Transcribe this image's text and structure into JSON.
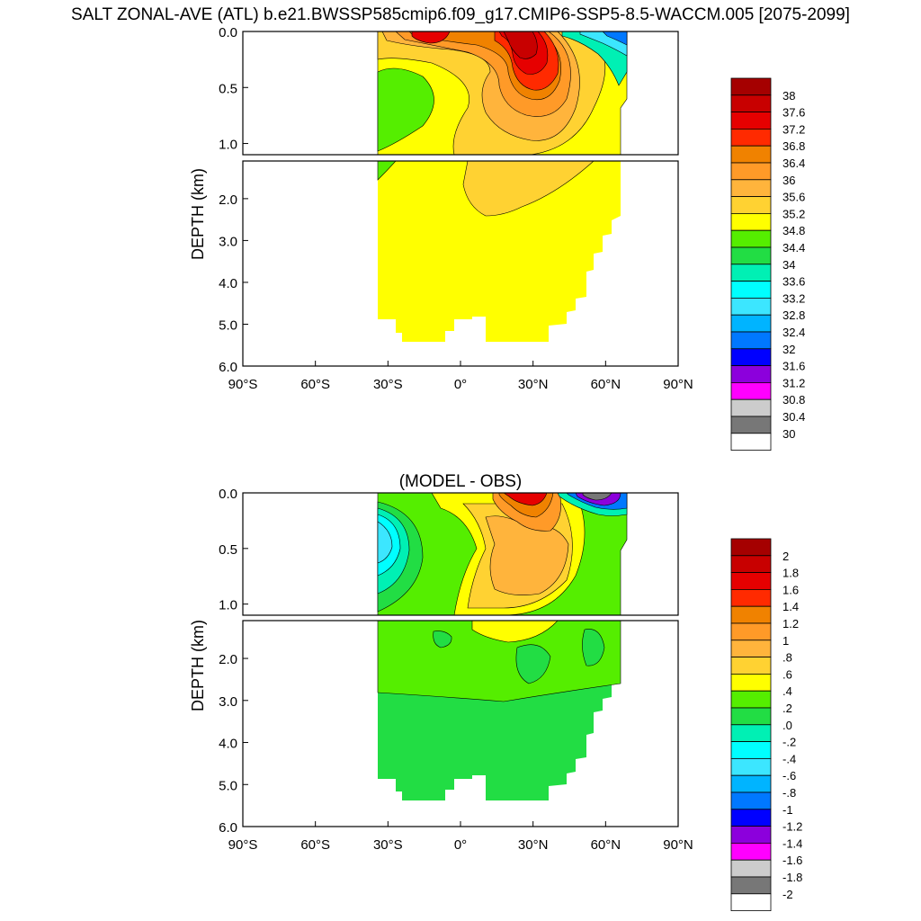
{
  "title": "SALT ZONAL-AVE (ATL) b.e21.BWSSP585cmip6.f09_g17.CMIP6-SSP5-8.5-WACCM.005 [2075-2099]",
  "chart_data": [
    {
      "type": "heatmap",
      "title": "",
      "ylabel": "DEPTH (km)",
      "xlabel": "",
      "x_ticks": [
        "90°S",
        "60°S",
        "30°S",
        "0°",
        "30°N",
        "60°N",
        "90°N"
      ],
      "y_ticks_upper": [
        "0.0",
        "0.5",
        "1.0"
      ],
      "y_ticks_lower": [
        "2.0",
        "3.0",
        "4.0",
        "5.0",
        "6.0"
      ],
      "xlim": [
        -90,
        90
      ],
      "ylim": [
        6.0,
        0.0
      ],
      "colorbar": {
        "labels": [
          "38",
          "37.6",
          "37.2",
          "36.8",
          "36.4",
          "36",
          "35.6",
          "35.2",
          "34.8",
          "34.4",
          "34",
          "33.6",
          "33.2",
          "32.8",
          "32.4",
          "32",
          "31.6",
          "31.2",
          "30.8",
          "30.4",
          "30"
        ],
        "colors": [
          "#a50000",
          "#c80000",
          "#e60000",
          "#ff2a00",
          "#f08200",
          "#ff9a28",
          "#ffb43c",
          "#ffd232",
          "#ffff00",
          "#55ee00",
          "#22dd44",
          "#00f0b4",
          "#00ffff",
          "#3ce6ff",
          "#00b4ff",
          "#0078ff",
          "#0000ff",
          "#8c00dc",
          "#ff00ff",
          "#cccccc",
          "#777777",
          "#ffffff"
        ]
      }
    },
    {
      "type": "heatmap",
      "title": "(MODEL - OBS)",
      "ylabel": "DEPTH (km)",
      "xlabel": "",
      "x_ticks": [
        "90°S",
        "60°S",
        "30°S",
        "0°",
        "30°N",
        "60°N",
        "90°N"
      ],
      "y_ticks_upper": [
        "0.0",
        "0.5",
        "1.0"
      ],
      "y_ticks_lower": [
        "2.0",
        "3.0",
        "4.0",
        "5.0",
        "6.0"
      ],
      "xlim": [
        -90,
        90
      ],
      "ylim": [
        6.0,
        0.0
      ],
      "colorbar": {
        "labels": [
          "2",
          "1.8",
          "1.6",
          "1.4",
          "1.2",
          "1",
          ".8",
          ".6",
          ".4",
          ".2",
          ".0",
          "-.2",
          "-.4",
          "-.6",
          "-.8",
          "-1",
          "-1.2",
          "-1.4",
          "-1.6",
          "-1.8",
          "-2"
        ],
        "colors": [
          "#a50000",
          "#c80000",
          "#e60000",
          "#ff2a00",
          "#f08200",
          "#ff9a28",
          "#ffb43c",
          "#ffd232",
          "#ffff00",
          "#55ee00",
          "#22dd44",
          "#00f0b4",
          "#00ffff",
          "#3ce6ff",
          "#00b4ff",
          "#0078ff",
          "#0000ff",
          "#8c00dc",
          "#ff00ff",
          "#cccccc",
          "#777777",
          "#ffffff"
        ]
      }
    }
  ]
}
